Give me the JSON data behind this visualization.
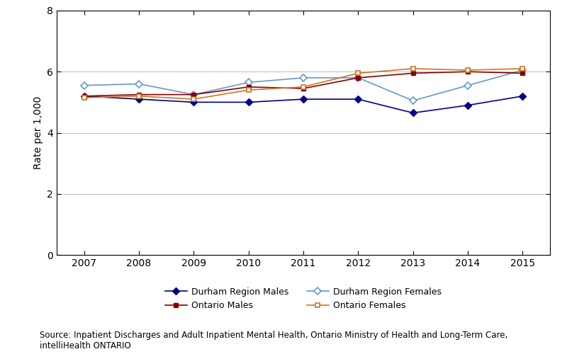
{
  "years": [
    2007,
    2008,
    2009,
    2010,
    2011,
    2012,
    2013,
    2014,
    2015
  ],
  "durham_males": [
    5.2,
    5.1,
    5.0,
    5.0,
    5.1,
    5.1,
    4.65,
    4.9,
    5.2
  ],
  "durham_females": [
    5.55,
    5.6,
    5.25,
    5.65,
    5.8,
    5.8,
    5.05,
    5.55,
    6.05
  ],
  "ontario_males": [
    5.2,
    5.25,
    5.25,
    5.5,
    5.45,
    5.8,
    5.95,
    6.0,
    5.95
  ],
  "ontario_females": [
    5.15,
    5.2,
    5.1,
    5.4,
    5.5,
    5.95,
    6.1,
    6.05,
    6.1
  ],
  "ylabel": "Rate per 1,000",
  "ylim": [
    0,
    8
  ],
  "yticks": [
    0,
    2,
    4,
    6,
    8
  ],
  "xlim": [
    2006.5,
    2015.5
  ],
  "xticks": [
    2007,
    2008,
    2009,
    2010,
    2011,
    2012,
    2013,
    2014,
    2015
  ],
  "color_durham_males": "#00008B",
  "color_durham_females": "#6699cc",
  "color_ontario_males": "#8B0000",
  "color_ontario_females": "#cc7722",
  "legend_durham_males": "Durham Region Males",
  "legend_durham_females": "Durham Region Females",
  "legend_ontario_males": "Ontario Males",
  "legend_ontario_females": "Ontario Females",
  "source_text": "Source: Inpatient Discharges and Adult Inpatient Mental Health, Ontario Ministry of Health and Long-Term Care,\nintelliHealth ONTARIO",
  "grid_color": "#bbbbbb",
  "background_color": "#ffffff",
  "spine_color": "#000000"
}
